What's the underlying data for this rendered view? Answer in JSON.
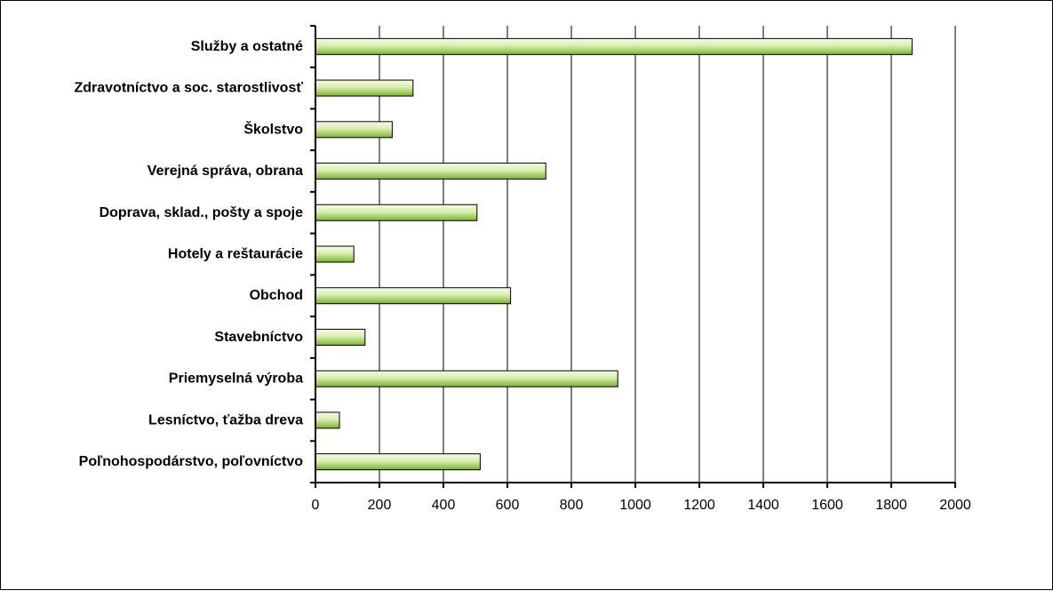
{
  "chart_data": {
    "type": "bar",
    "orientation": "horizontal",
    "categories": [
      "Služby a ostatné",
      "Zdravotníctvo a soc. starostlivosť",
      "Školstvo",
      "Verejná správa, obrana",
      "Doprava, sklad., pošty a spoje",
      "Hotely a reštaurácie",
      "Obchod",
      "Stavebníctvo",
      "Priemyselná výroba",
      "Lesníctvo, ťažba dreva",
      "Poľnohospodárstvo, poľovníctvo"
    ],
    "values": [
      1865,
      305,
      240,
      720,
      505,
      120,
      610,
      155,
      945,
      75,
      515
    ],
    "xlim": [
      0,
      2000
    ],
    "xticks": [
      0,
      200,
      400,
      600,
      800,
      1000,
      1200,
      1400,
      1600,
      1800,
      2000
    ],
    "vertical_gridlines": true,
    "legend": "none",
    "bar_color_light": "#f4fbe6",
    "bar_color_dark": "#7ab32e",
    "bar_outline": "#000000",
    "gridline_color": "#000000"
  }
}
